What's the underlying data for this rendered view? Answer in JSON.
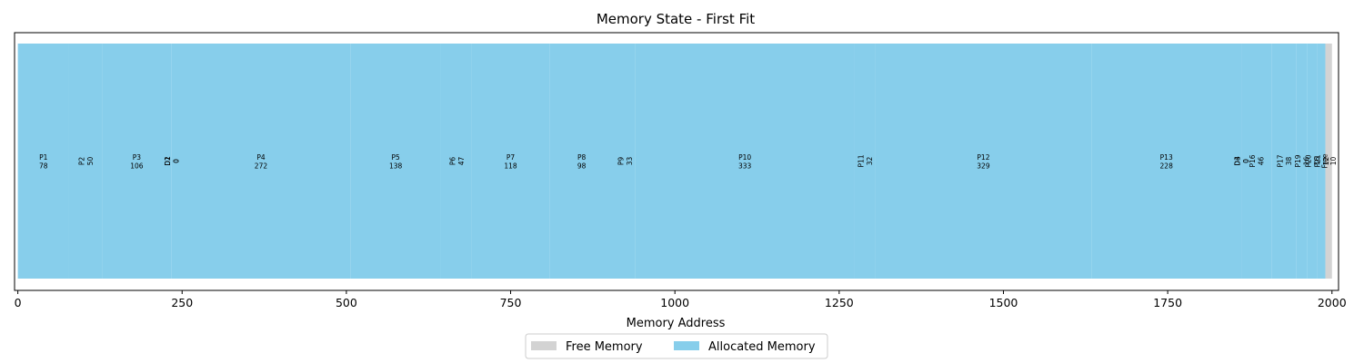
{
  "chart_data": {
    "type": "bar",
    "title": "Memory State - First Fit",
    "xlabel": "Memory Address",
    "ylabel": "",
    "xlim": [
      -5,
      2010
    ],
    "xticks": [
      0,
      250,
      500,
      750,
      1000,
      1250,
      1500,
      1750,
      2000
    ],
    "grid": false,
    "legend_position": "bottom-center",
    "legend": [
      {
        "name": "Free Memory",
        "color": "#d3d3d3"
      },
      {
        "name": "Allocated Memory",
        "color": "#87ceeb"
      }
    ],
    "segments": [
      {
        "name": "P1",
        "start": 0,
        "size": 78,
        "type": "allocated"
      },
      {
        "name": "P2",
        "start": 78,
        "size": 50,
        "type": "allocated"
      },
      {
        "name": "P3",
        "start": 128,
        "size": 106,
        "type": "allocated"
      },
      {
        "name": "D1",
        "start": 234,
        "size": 0,
        "type": "allocated"
      },
      {
        "name": "D2",
        "start": 234,
        "size": 0,
        "type": "allocated"
      },
      {
        "name": "P4",
        "start": 234,
        "size": 272,
        "type": "allocated"
      },
      {
        "name": "P5",
        "start": 506,
        "size": 138,
        "type": "allocated"
      },
      {
        "name": "P6",
        "start": 644,
        "size": 47,
        "type": "allocated"
      },
      {
        "name": "P7",
        "start": 691,
        "size": 118,
        "type": "allocated"
      },
      {
        "name": "P8",
        "start": 809,
        "size": 98,
        "type": "allocated"
      },
      {
        "name": "P9",
        "start": 907,
        "size": 33,
        "type": "allocated"
      },
      {
        "name": "P10",
        "start": 940,
        "size": 333,
        "type": "allocated"
      },
      {
        "name": "P11",
        "start": 1273,
        "size": 32,
        "type": "allocated"
      },
      {
        "name": "P12",
        "start": 1305,
        "size": 329,
        "type": "allocated"
      },
      {
        "name": "P13",
        "start": 1634,
        "size": 228,
        "type": "allocated"
      },
      {
        "name": "D3",
        "start": 1862,
        "size": 0,
        "type": "allocated"
      },
      {
        "name": "D4",
        "start": 1862,
        "size": 0,
        "type": "allocated"
      },
      {
        "name": "P16",
        "start": 1862,
        "size": 46,
        "type": "allocated"
      },
      {
        "name": "P17",
        "start": 1908,
        "size": 38,
        "type": "allocated"
      },
      {
        "name": "P19",
        "start": 1946,
        "size": 16,
        "type": "allocated"
      },
      {
        "name": "P20",
        "start": 1962,
        "size": 16,
        "type": "allocated"
      },
      {
        "name": "P21",
        "start": 1978,
        "size": 12,
        "type": "allocated"
      },
      {
        "name": "Free",
        "start": 1990,
        "size": 10,
        "type": "free"
      }
    ]
  }
}
